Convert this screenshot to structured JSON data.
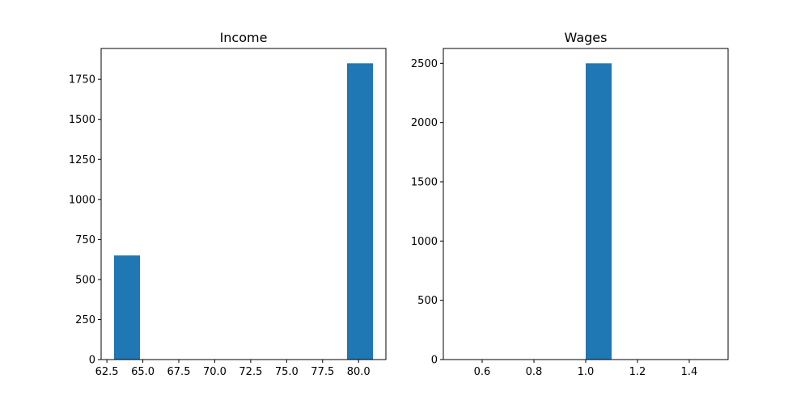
{
  "chart_data": [
    {
      "type": "bar",
      "title": "Income",
      "xlabel": "",
      "ylabel": "",
      "xlim": [
        62.1,
        81.9
      ],
      "ylim": [
        0,
        1942.5
      ],
      "x_ticks": [
        62.5,
        65.0,
        67.5,
        70.0,
        72.5,
        75.0,
        77.5,
        80.0
      ],
      "x_tick_labels": [
        "62.5",
        "65.0",
        "67.5",
        "70.0",
        "72.5",
        "75.0",
        "77.5",
        "80.0"
      ],
      "y_ticks": [
        0,
        250,
        500,
        750,
        1000,
        1250,
        1500,
        1750
      ],
      "y_tick_labels": [
        "0",
        "250",
        "500",
        "750",
        "1000",
        "1250",
        "1500",
        "1750"
      ],
      "bars": [
        {
          "x0": 63.0,
          "x1": 64.8,
          "value": 650
        },
        {
          "x0": 79.2,
          "x1": 81.0,
          "value": 1850
        }
      ],
      "color": "#1f77b4",
      "grid": false
    },
    {
      "type": "bar",
      "title": "Wages",
      "xlabel": "",
      "ylabel": "",
      "xlim": [
        0.45,
        1.55
      ],
      "ylim": [
        0,
        2625
      ],
      "x_ticks": [
        0.6,
        0.8,
        1.0,
        1.2,
        1.4
      ],
      "x_tick_labels": [
        "0.6",
        "0.8",
        "1.0",
        "1.2",
        "1.4"
      ],
      "y_ticks": [
        0,
        500,
        1000,
        1500,
        2000,
        2500
      ],
      "y_tick_labels": [
        "0",
        "500",
        "1000",
        "1500",
        "2000",
        "2500"
      ],
      "bars": [
        {
          "x0": 1.0,
          "x1": 1.1,
          "value": 2500
        }
      ],
      "color": "#1f77b4",
      "grid": false
    }
  ]
}
